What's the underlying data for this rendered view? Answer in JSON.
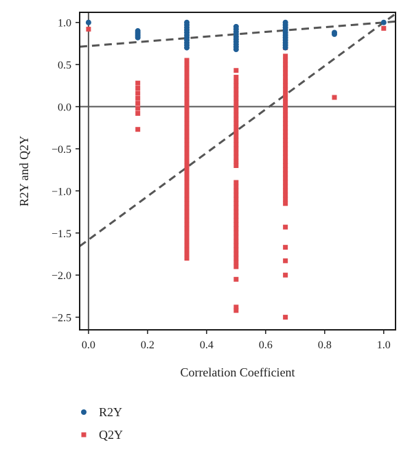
{
  "chart_data": {
    "type": "scatter",
    "title": "",
    "xlabel": "Correlation Coefficient",
    "ylabel": "R2Y and Q2Y",
    "xlim": [
      -0.03,
      1.04
    ],
    "ylim": [
      -2.65,
      1.12
    ],
    "x_ticks": [
      0.0,
      0.2,
      0.4,
      0.6,
      0.8,
      1.0
    ],
    "x_tick_labels": [
      "0.0",
      "0.2",
      "0.4",
      "0.6",
      "0.8",
      "1.0"
    ],
    "y_ticks": [
      1.0,
      0.5,
      0.0,
      -0.5,
      -1.0,
      -1.5,
      -2.0,
      -2.5
    ],
    "y_tick_labels": [
      "1.0",
      "0.5",
      "0.0",
      "−0.5",
      "−1.0",
      "−1.5",
      "−2.0",
      "−2.5"
    ],
    "grid": false,
    "legend_position": "bottom-left",
    "reference_lines": {
      "vertical_x": 0,
      "horizontal_y": 0
    },
    "series": [
      {
        "name": "R2Y",
        "marker": "circle",
        "color": "#1f5e96",
        "points": [
          [
            0.0,
            1.0
          ],
          [
            0.167,
            0.9
          ],
          [
            0.167,
            0.88
          ],
          [
            0.167,
            0.86
          ],
          [
            0.167,
            0.84
          ],
          [
            0.167,
            0.82
          ],
          [
            0.333,
            1.0
          ],
          [
            0.333,
            0.97
          ],
          [
            0.333,
            0.94
          ],
          [
            0.333,
            0.91
          ],
          [
            0.333,
            0.88
          ],
          [
            0.333,
            0.85
          ],
          [
            0.333,
            0.82
          ],
          [
            0.333,
            0.79
          ],
          [
            0.333,
            0.76
          ],
          [
            0.333,
            0.73
          ],
          [
            0.333,
            0.7
          ],
          [
            0.5,
            0.95
          ],
          [
            0.5,
            0.92
          ],
          [
            0.5,
            0.89
          ],
          [
            0.5,
            0.86
          ],
          [
            0.5,
            0.83
          ],
          [
            0.5,
            0.8
          ],
          [
            0.5,
            0.77
          ],
          [
            0.5,
            0.74
          ],
          [
            0.5,
            0.71
          ],
          [
            0.5,
            0.68
          ],
          [
            0.667,
            1.0
          ],
          [
            0.667,
            0.97
          ],
          [
            0.667,
            0.94
          ],
          [
            0.667,
            0.91
          ],
          [
            0.667,
            0.88
          ],
          [
            0.667,
            0.85
          ],
          [
            0.667,
            0.82
          ],
          [
            0.667,
            0.79
          ],
          [
            0.667,
            0.76
          ],
          [
            0.667,
            0.73
          ],
          [
            0.667,
            0.7
          ],
          [
            0.833,
            0.88
          ],
          [
            0.833,
            0.86
          ],
          [
            1.0,
            1.0
          ]
        ]
      },
      {
        "name": "Q2Y",
        "marker": "square",
        "color": "#e04a4f",
        "points": [
          [
            0.0,
            0.92
          ],
          [
            0.167,
            0.28
          ],
          [
            0.167,
            0.22
          ],
          [
            0.167,
            0.16
          ],
          [
            0.167,
            0.1
          ],
          [
            0.167,
            0.04
          ],
          [
            0.167,
            -0.02
          ],
          [
            0.167,
            -0.08
          ],
          [
            0.167,
            -0.27
          ],
          [
            0.333,
            0.96
          ],
          [
            0.333,
            0.9
          ],
          [
            0.333,
            0.55
          ],
          [
            0.333,
            0.5
          ],
          [
            0.333,
            0.45
          ],
          [
            0.333,
            0.4
          ],
          [
            0.333,
            0.35
          ],
          [
            0.333,
            0.3
          ],
          [
            0.333,
            0.25
          ],
          [
            0.333,
            0.2
          ],
          [
            0.333,
            0.15
          ],
          [
            0.333,
            0.1
          ],
          [
            0.333,
            0.05
          ],
          [
            0.333,
            0.0
          ],
          [
            0.333,
            -0.05
          ],
          [
            0.333,
            -0.1
          ],
          [
            0.333,
            -0.15
          ],
          [
            0.333,
            -0.2
          ],
          [
            0.333,
            -0.25
          ],
          [
            0.333,
            -0.3
          ],
          [
            0.333,
            -0.35
          ],
          [
            0.333,
            -0.4
          ],
          [
            0.333,
            -0.45
          ],
          [
            0.333,
            -0.5
          ],
          [
            0.333,
            -0.55
          ],
          [
            0.333,
            -0.6
          ],
          [
            0.333,
            -0.65
          ],
          [
            0.333,
            -0.7
          ],
          [
            0.333,
            -0.75
          ],
          [
            0.333,
            -0.8
          ],
          [
            0.333,
            -0.85
          ],
          [
            0.333,
            -0.9
          ],
          [
            0.333,
            -0.95
          ],
          [
            0.333,
            -1.0
          ],
          [
            0.333,
            -1.05
          ],
          [
            0.333,
            -1.1
          ],
          [
            0.333,
            -1.15
          ],
          [
            0.333,
            -1.2
          ],
          [
            0.333,
            -1.25
          ],
          [
            0.333,
            -1.3
          ],
          [
            0.333,
            -1.35
          ],
          [
            0.333,
            -1.4
          ],
          [
            0.333,
            -1.45
          ],
          [
            0.333,
            -1.5
          ],
          [
            0.333,
            -1.55
          ],
          [
            0.333,
            -1.6
          ],
          [
            0.333,
            -1.65
          ],
          [
            0.333,
            -1.7
          ],
          [
            0.333,
            -1.75
          ],
          [
            0.333,
            -1.8
          ],
          [
            0.5,
            0.43
          ],
          [
            0.5,
            0.35
          ],
          [
            0.5,
            0.3
          ],
          [
            0.5,
            0.25
          ],
          [
            0.5,
            0.2
          ],
          [
            0.5,
            0.15
          ],
          [
            0.5,
            0.1
          ],
          [
            0.5,
            0.05
          ],
          [
            0.5,
            0.0
          ],
          [
            0.5,
            -0.05
          ],
          [
            0.5,
            -0.1
          ],
          [
            0.5,
            -0.15
          ],
          [
            0.5,
            -0.2
          ],
          [
            0.5,
            -0.25
          ],
          [
            0.5,
            -0.3
          ],
          [
            0.5,
            -0.35
          ],
          [
            0.5,
            -0.4
          ],
          [
            0.5,
            -0.45
          ],
          [
            0.5,
            -0.5
          ],
          [
            0.5,
            -0.55
          ],
          [
            0.5,
            -0.6
          ],
          [
            0.5,
            -0.65
          ],
          [
            0.5,
            -0.7
          ],
          [
            0.5,
            -0.9
          ],
          [
            0.5,
            -0.95
          ],
          [
            0.5,
            -1.0
          ],
          [
            0.5,
            -1.05
          ],
          [
            0.5,
            -1.1
          ],
          [
            0.5,
            -1.15
          ],
          [
            0.5,
            -1.2
          ],
          [
            0.5,
            -1.25
          ],
          [
            0.5,
            -1.3
          ],
          [
            0.5,
            -1.35
          ],
          [
            0.5,
            -1.4
          ],
          [
            0.5,
            -1.45
          ],
          [
            0.5,
            -1.5
          ],
          [
            0.5,
            -1.55
          ],
          [
            0.5,
            -1.6
          ],
          [
            0.5,
            -1.65
          ],
          [
            0.5,
            -1.7
          ],
          [
            0.5,
            -1.75
          ],
          [
            0.5,
            -1.8
          ],
          [
            0.5,
            -1.85
          ],
          [
            0.5,
            -1.9
          ],
          [
            0.5,
            -2.05
          ],
          [
            0.5,
            -2.38
          ],
          [
            0.5,
            -2.42
          ],
          [
            0.667,
            0.95
          ],
          [
            0.667,
            0.9
          ],
          [
            0.667,
            0.85
          ],
          [
            0.667,
            0.8
          ],
          [
            0.667,
            0.75
          ],
          [
            0.667,
            0.7
          ],
          [
            0.667,
            0.6
          ],
          [
            0.667,
            0.55
          ],
          [
            0.667,
            0.5
          ],
          [
            0.667,
            0.45
          ],
          [
            0.667,
            0.4
          ],
          [
            0.667,
            0.35
          ],
          [
            0.667,
            0.3
          ],
          [
            0.667,
            0.25
          ],
          [
            0.667,
            0.2
          ],
          [
            0.667,
            0.15
          ],
          [
            0.667,
            0.1
          ],
          [
            0.667,
            0.05
          ],
          [
            0.667,
            0.0
          ],
          [
            0.667,
            -0.05
          ],
          [
            0.667,
            -0.1
          ],
          [
            0.667,
            -0.15
          ],
          [
            0.667,
            -0.2
          ],
          [
            0.667,
            -0.25
          ],
          [
            0.667,
            -0.3
          ],
          [
            0.667,
            -0.35
          ],
          [
            0.667,
            -0.4
          ],
          [
            0.667,
            -0.45
          ],
          [
            0.667,
            -0.5
          ],
          [
            0.667,
            -0.55
          ],
          [
            0.667,
            -0.6
          ],
          [
            0.667,
            -0.65
          ],
          [
            0.667,
            -0.7
          ],
          [
            0.667,
            -0.75
          ],
          [
            0.667,
            -0.8
          ],
          [
            0.667,
            -0.85
          ],
          [
            0.667,
            -0.9
          ],
          [
            0.667,
            -0.95
          ],
          [
            0.667,
            -1.0
          ],
          [
            0.667,
            -1.05
          ],
          [
            0.667,
            -1.1
          ],
          [
            0.667,
            -1.15
          ],
          [
            0.667,
            -1.43
          ],
          [
            0.667,
            -1.67
          ],
          [
            0.667,
            -1.83
          ],
          [
            0.667,
            -2.0
          ],
          [
            0.667,
            -2.5
          ],
          [
            0.833,
            0.11
          ],
          [
            1.0,
            0.93
          ]
        ]
      }
    ],
    "trend_lines": [
      {
        "for": "R2Y",
        "intercept": 0.72,
        "slope": 0.28,
        "style": "dashed",
        "color": "#555555"
      },
      {
        "for": "Q2Y",
        "intercept": -1.58,
        "slope": 2.58,
        "style": "dashed",
        "color": "#555555"
      }
    ]
  }
}
